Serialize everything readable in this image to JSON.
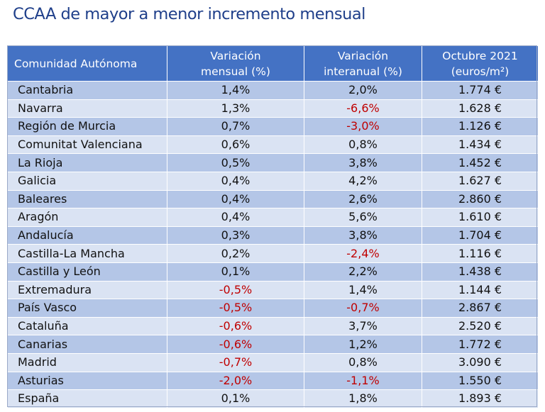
{
  "title": "CCAA de mayor a menor incremento mensual",
  "headers": {
    "col1": "Comunidad Autónoma",
    "col2_line1": "Variación",
    "col2_line2": "mensual (%)",
    "col3_line1": "Variación",
    "col3_line2": "interanual (%)",
    "col4_line1": "Octubre 2021",
    "col4_line2": "(euros/m²)"
  },
  "colors": {
    "header_bg": "#4472c4",
    "row_dark": "#b4c6e7",
    "row_light": "#dae3f3",
    "negative": "#c00000",
    "title": "#1f3f8a"
  },
  "rows": [
    {
      "region": "Cantabria",
      "mensual": "1,4%",
      "interanual": "2,0%",
      "precio": "1.774 €"
    },
    {
      "region": "Navarra",
      "mensual": "1,3%",
      "interanual": "-6,6%",
      "precio": "1.628 €"
    },
    {
      "region": "Región de Murcia",
      "mensual": "0,7%",
      "interanual": "-3,0%",
      "precio": "1.126 €"
    },
    {
      "region": "Comunitat Valenciana",
      "mensual": "0,6%",
      "interanual": "0,8%",
      "precio": "1.434 €"
    },
    {
      "region": "La Rioja",
      "mensual": "0,5%",
      "interanual": "3,8%",
      "precio": "1.452 €"
    },
    {
      "region": "Galicia",
      "mensual": "0,4%",
      "interanual": "4,2%",
      "precio": "1.627 €"
    },
    {
      "region": "Baleares",
      "mensual": "0,4%",
      "interanual": "2,6%",
      "precio": "2.860 €"
    },
    {
      "region": "Aragón",
      "mensual": "0,4%",
      "interanual": "5,6%",
      "precio": "1.610 €"
    },
    {
      "region": "Andalucía",
      "mensual": "0,3%",
      "interanual": "3,8%",
      "precio": "1.704 €"
    },
    {
      "region": "Castilla-La Mancha",
      "mensual": "0,2%",
      "interanual": "-2,4%",
      "precio": "1.116 €"
    },
    {
      "region": "Castilla y León",
      "mensual": "0,1%",
      "interanual": "2,2%",
      "precio": "1.438 €"
    },
    {
      "region": "Extremadura",
      "mensual": "-0,5%",
      "interanual": "1,4%",
      "precio": "1.144 €"
    },
    {
      "region": "País Vasco",
      "mensual": "-0,5%",
      "interanual": "-0,7%",
      "precio": "2.867 €"
    },
    {
      "region": "Cataluña",
      "mensual": "-0,6%",
      "interanual": "3,7%",
      "precio": "2.520 €"
    },
    {
      "region": "Canarias",
      "mensual": "-0,6%",
      "interanual": "1,2%",
      "precio": "1.772 €"
    },
    {
      "region": "Madrid",
      "mensual": "-0,7%",
      "interanual": "0,8%",
      "precio": "3.090 €"
    },
    {
      "region": "Asturias",
      "mensual": "-2,0%",
      "interanual": "-1,1%",
      "precio": "1.550 €"
    },
    {
      "region": "España",
      "mensual": "0,1%",
      "interanual": "1,8%",
      "precio": "1.893 €"
    }
  ]
}
